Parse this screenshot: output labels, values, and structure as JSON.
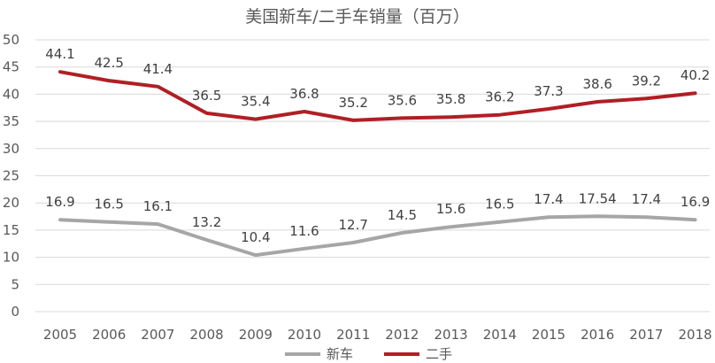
{
  "chart_data": {
    "type": "line",
    "title": "美国新车/二手车销量（百万）",
    "xlabel": "",
    "ylabel": "",
    "ylim": [
      0,
      50
    ],
    "yticks": [
      "0",
      "5",
      "10",
      "15",
      "20",
      "25",
      "30",
      "35",
      "40",
      "45",
      "50"
    ],
    "grid": true,
    "legend_position": "bottom",
    "categories": [
      "2005",
      "2006",
      "2007",
      "2008",
      "2009",
      "2010",
      "2011",
      "2012",
      "2013",
      "2014",
      "2015",
      "2016",
      "2017",
      "2018"
    ],
    "series": [
      {
        "name": "新车",
        "color": "#a6a6a6",
        "values": [
          16.9,
          16.5,
          16.1,
          13.2,
          10.4,
          11.6,
          12.7,
          14.5,
          15.6,
          16.5,
          17.4,
          17.54,
          17.4,
          16.9
        ],
        "labels": [
          "16.9",
          "16.5",
          "16.1",
          "13.2",
          "10.4",
          "11.6",
          "12.7",
          "14.5",
          "15.6",
          "16.5",
          "17.4",
          "17.54",
          "17.4",
          "16.9"
        ]
      },
      {
        "name": "二手",
        "color": "#b01f24",
        "values": [
          44.1,
          42.5,
          41.4,
          36.5,
          35.4,
          36.8,
          35.2,
          35.6,
          35.8,
          36.2,
          37.3,
          38.6,
          39.2,
          40.2
        ],
        "labels": [
          "44.1",
          "42.5",
          "41.4",
          "36.5",
          "35.4",
          "36.8",
          "35.2",
          "35.6",
          "35.8",
          "36.2",
          "37.3",
          "38.6",
          "39.2",
          "40.2"
        ]
      }
    ]
  }
}
